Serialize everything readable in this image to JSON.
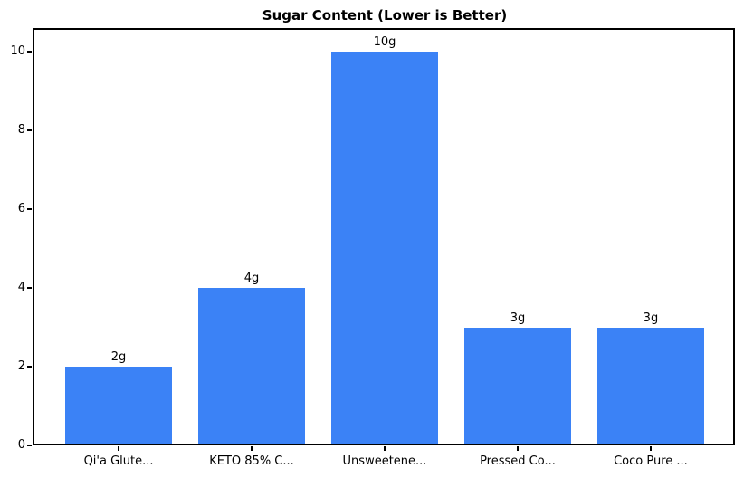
{
  "chart_data": {
    "type": "bar",
    "title": "Sugar Content (Lower is Better)",
    "categories": [
      "Qi'a Glute...",
      "KETO 85% C...",
      "Unsweetene...",
      "Pressed Co...",
      "Coco Pure ..."
    ],
    "values": [
      2,
      4,
      10,
      3,
      3
    ],
    "bar_labels": [
      "2g",
      "4g",
      "10g",
      "3g",
      "3g"
    ],
    "yticks": [
      0,
      2,
      4,
      6,
      8,
      10
    ],
    "ylim": [
      0,
      10.6
    ],
    "xlabel": "",
    "ylabel": "",
    "grid": false,
    "legend": null,
    "bar_color": "#3b82f6",
    "axis_color": "#000000",
    "background_color": "#ffffff"
  }
}
